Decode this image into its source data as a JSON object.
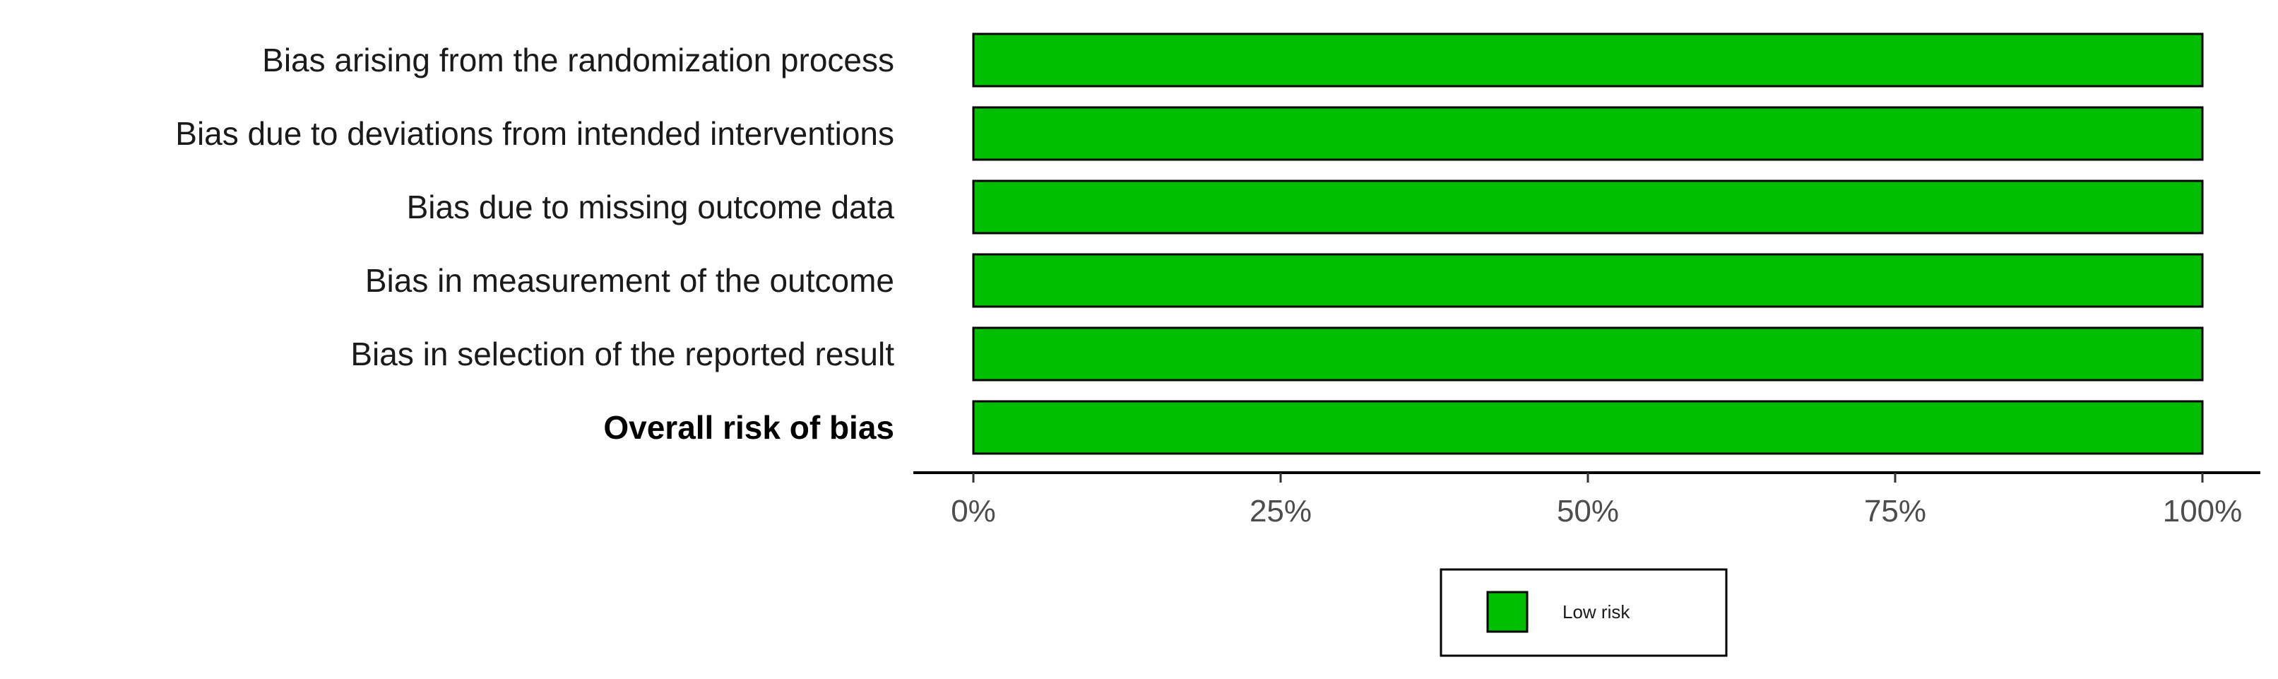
{
  "chart_data": {
    "type": "bar",
    "orientation": "horizontal",
    "stacked": true,
    "categories": [
      "Bias arising from the randomization process",
      "Bias due to deviations from intended interventions",
      "Bias due to missing outcome data",
      "Bias in measurement of the outcome",
      "Bias in selection of the reported result",
      "Overall risk of bias"
    ],
    "bold_categories": [
      "Overall risk of bias"
    ],
    "series": [
      {
        "name": "Low risk",
        "color": "#00bf00",
        "values": [
          100,
          100,
          100,
          100,
          100,
          100
        ]
      }
    ],
    "xlim": [
      0,
      100
    ],
    "x_ticks": [
      0,
      25,
      50,
      75,
      100
    ],
    "x_tick_labels": [
      "0%",
      "25%",
      "50%",
      "75%",
      "100%"
    ],
    "title": "",
    "xlabel": "",
    "ylabel": "",
    "grid": false,
    "legend_position": "bottom",
    "bar_outline_color": "#000000"
  }
}
